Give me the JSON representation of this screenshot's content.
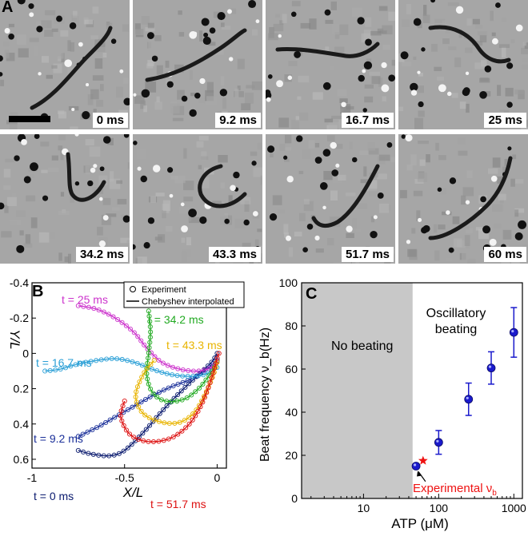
{
  "panel_a": {
    "label": "A",
    "frames": [
      {
        "time": "0 ms"
      },
      {
        "time": "9.2 ms"
      },
      {
        "time": "16.7 ms"
      },
      {
        "time": "25 ms"
      },
      {
        "time": "34.2 ms"
      },
      {
        "time": "43.3 ms"
      },
      {
        "time": "51.7 ms"
      },
      {
        "time": "60 ms"
      }
    ]
  },
  "panel_b": {
    "label": "B",
    "legend": {
      "experiment": "Experiment",
      "chebyshev": "Chebyshev interpolated"
    },
    "curve_labels": [
      {
        "text": "t = 25 ms",
        "color": "#cc33cc"
      },
      {
        "text": "t = 34.2 ms",
        "color": "#22aa22"
      },
      {
        "text": "t = 16.7 ms",
        "color": "#2a9fd6"
      },
      {
        "text": "t = 43.3 ms",
        "color": "#e8b400"
      },
      {
        "text": "t = 9.2 ms",
        "color": "#1a2f99"
      },
      {
        "text": "t = 0 ms",
        "color": "#0a1a6e"
      },
      {
        "text": "t = 51.7 ms",
        "color": "#dd1111"
      }
    ]
  },
  "panel_c": {
    "label": "C",
    "no_beating": "No beating",
    "osc_line1": "Oscillatory",
    "osc_line2": "beating",
    "exp_label": "Experimental ν",
    "exp_sub": "b"
  },
  "chart_data": [
    {
      "type": "line",
      "xlabel": "X/L",
      "ylabel": "Y/L",
      "xlim": [
        -1,
        0.05
      ],
      "ylim": [
        0.65,
        -0.4
      ],
      "y_inverted": true,
      "xticks": [
        -1,
        -0.5,
        0
      ],
      "yticks": [
        -0.4,
        -0.2,
        0,
        0.2,
        0.4,
        0.6
      ],
      "series": [
        {
          "name": "t = 0 ms",
          "color": "#0a1a6e",
          "points": [
            [
              -0.75,
              0.55
            ],
            [
              -0.68,
              0.57
            ],
            [
              -0.58,
              0.58
            ],
            [
              -0.5,
              0.55
            ],
            [
              -0.4,
              0.45
            ],
            [
              -0.3,
              0.33
            ],
            [
              -0.2,
              0.22
            ],
            [
              -0.1,
              0.12
            ],
            [
              -0.03,
              0.05
            ],
            [
              0,
              0
            ]
          ]
        },
        {
          "name": "t = 9.2 ms",
          "color": "#1a2f99",
          "points": [
            [
              -0.75,
              0.47
            ],
            [
              -0.65,
              0.42
            ],
            [
              -0.55,
              0.36
            ],
            [
              -0.45,
              0.3
            ],
            [
              -0.35,
              0.24
            ],
            [
              -0.25,
              0.19
            ],
            [
              -0.15,
              0.15
            ],
            [
              -0.07,
              0.1
            ],
            [
              0,
              0.04
            ]
          ]
        },
        {
          "name": "t = 16.7 ms",
          "color": "#2a9fd6",
          "points": [
            [
              -0.93,
              0.1
            ],
            [
              -0.85,
              0.09
            ],
            [
              -0.75,
              0.06
            ],
            [
              -0.65,
              0.04
            ],
            [
              -0.55,
              0.03
            ],
            [
              -0.45,
              0.05
            ],
            [
              -0.35,
              0.09
            ],
            [
              -0.25,
              0.12
            ],
            [
              -0.15,
              0.13
            ],
            [
              -0.07,
              0.12
            ],
            [
              0,
              0.08
            ]
          ]
        },
        {
          "name": "t = 25 ms",
          "color": "#cc33cc",
          "points": [
            [
              -0.75,
              -0.27
            ],
            [
              -0.65,
              -0.25
            ],
            [
              -0.55,
              -0.2
            ],
            [
              -0.45,
              -0.12
            ],
            [
              -0.38,
              -0.03
            ],
            [
              -0.3,
              0.05
            ],
            [
              -0.2,
              0.09
            ],
            [
              -0.1,
              0.1
            ],
            [
              -0.03,
              0.08
            ],
            [
              0,
              0.05
            ]
          ]
        },
        {
          "name": "t = 34.2 ms",
          "color": "#22aa22",
          "points": [
            [
              -0.37,
              -0.24
            ],
            [
              -0.36,
              -0.12
            ],
            [
              -0.37,
              0
            ],
            [
              -0.38,
              0.12
            ],
            [
              -0.35,
              0.22
            ],
            [
              -0.28,
              0.27
            ],
            [
              -0.18,
              0.26
            ],
            [
              -0.1,
              0.2
            ],
            [
              -0.04,
              0.12
            ],
            [
              0,
              0.05
            ]
          ]
        },
        {
          "name": "t = 43.3 ms",
          "color": "#e8b400",
          "points": [
            [
              -0.34,
              0.04
            ],
            [
              -0.4,
              0.12
            ],
            [
              -0.44,
              0.24
            ],
            [
              -0.4,
              0.34
            ],
            [
              -0.3,
              0.39
            ],
            [
              -0.2,
              0.39
            ],
            [
              -0.12,
              0.33
            ],
            [
              -0.06,
              0.22
            ],
            [
              -0.02,
              0.12
            ],
            [
              0,
              0.05
            ]
          ]
        },
        {
          "name": "t = 51.7 ms",
          "color": "#dd1111",
          "points": [
            [
              -0.5,
              0.27
            ],
            [
              -0.52,
              0.36
            ],
            [
              -0.47,
              0.46
            ],
            [
              -0.37,
              0.5
            ],
            [
              -0.25,
              0.48
            ],
            [
              -0.15,
              0.4
            ],
            [
              -0.08,
              0.28
            ],
            [
              -0.03,
              0.14
            ],
            [
              0,
              0.03
            ],
            [
              0.01,
              0
            ]
          ]
        }
      ]
    },
    {
      "type": "scatter",
      "xlabel": "ATP (μM)",
      "ylabel": "Beat frequency ν_b(Hz)",
      "xscale": "log",
      "xlim": [
        1.5,
        1300
      ],
      "ylim": [
        0,
        100
      ],
      "xticks": [
        10,
        100,
        1000
      ],
      "yticks": [
        0,
        20,
        40,
        60,
        80,
        100
      ],
      "shaded_region_x": [
        1.5,
        45
      ],
      "points": [
        {
          "x": 50,
          "y": 15,
          "err": 0.8
        },
        {
          "x": 100,
          "y": 26,
          "err": 5.5
        },
        {
          "x": 250,
          "y": 46,
          "err": 7.5
        },
        {
          "x": 500,
          "y": 60.5,
          "err": 7.5
        },
        {
          "x": 1000,
          "y": 77,
          "err": 11.5
        }
      ],
      "experimental_point": {
        "x": 62,
        "y": 17.5,
        "color": "#ee1111"
      }
    }
  ]
}
